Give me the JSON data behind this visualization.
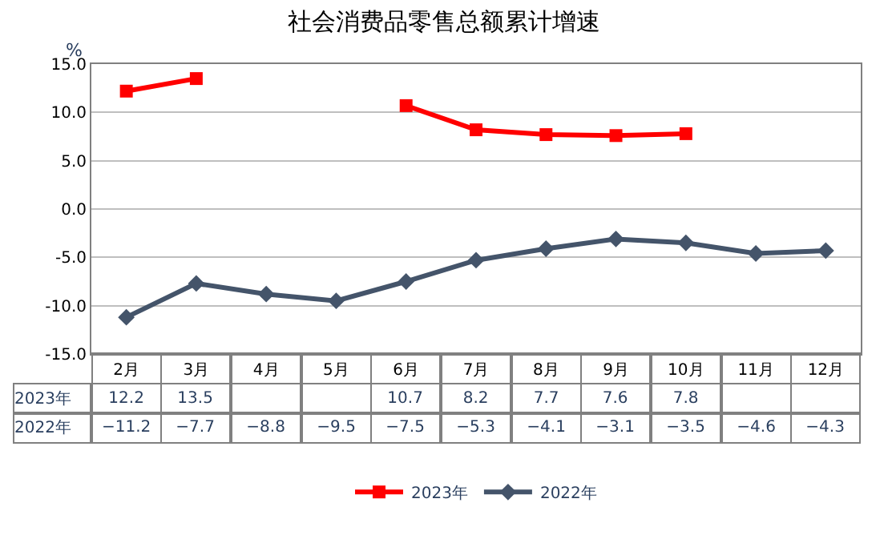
{
  "chart_data": {
    "type": "line",
    "title": "社会消费品零售总额累计增速",
    "ylabel": "%",
    "categories": [
      "2月",
      "3月",
      "4月",
      "5月",
      "6月",
      "7月",
      "8月",
      "9月",
      "10月",
      "11月",
      "12月"
    ],
    "series": [
      {
        "name": "2023年",
        "color": "#ff0000",
        "marker": "square",
        "values": [
          12.2,
          13.5,
          null,
          null,
          10.7,
          8.2,
          7.7,
          7.6,
          7.8,
          null,
          null
        ],
        "value_labels": [
          "12.2",
          "13.5",
          null,
          null,
          "10.7",
          "8.2",
          "7.7",
          "7.6",
          "7.8",
          null,
          null
        ]
      },
      {
        "name": "2022年",
        "color": "#44546a",
        "marker": "diamond",
        "values": [
          -11.2,
          -7.7,
          -8.8,
          -9.5,
          -7.5,
          -5.3,
          -4.1,
          -3.1,
          -3.5,
          -4.6,
          -4.3
        ],
        "value_labels": [
          "−11.2",
          "−7.7",
          "−8.8",
          "−9.5",
          "−7.5",
          "−5.3",
          "−4.1",
          "−3.1",
          "−3.5",
          "−4.6",
          "−4.3"
        ]
      }
    ],
    "ylim": [
      -15,
      15
    ],
    "yticks": [
      {
        "value": -15,
        "label": "-15.0"
      },
      {
        "value": -10,
        "label": "-10.0"
      },
      {
        "value": -5,
        "label": "-5.0"
      },
      {
        "value": 0,
        "label": "0.0"
      },
      {
        "value": 5,
        "label": "5.0"
      },
      {
        "value": 10,
        "label": "10.0"
      },
      {
        "value": 15,
        "label": "15.0"
      }
    ],
    "grid": "y",
    "legend": "bottom",
    "line_style": "solid"
  }
}
